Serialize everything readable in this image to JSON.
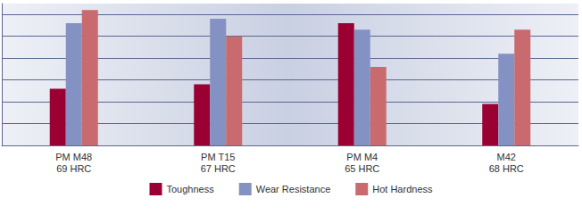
{
  "chart_data": {
    "type": "bar",
    "categories": [
      "PM M48\n69 HRC",
      "PM T15\n67 HRC",
      "PM M4\n65 HRC",
      "M42\n68 HRC"
    ],
    "series": [
      {
        "name": "Toughness",
        "color": "#9b0033",
        "values": [
          2.6,
          2.8,
          5.6,
          1.9
        ]
      },
      {
        "name": "Wear Resistance",
        "color": "#8491c3",
        "values": [
          5.6,
          5.8,
          5.3,
          4.2
        ]
      },
      {
        "name": "Hot Hardness",
        "color": "#c96b6e",
        "values": [
          6.2,
          5.0,
          3.6,
          5.3
        ]
      }
    ],
    "ylim": [
      0,
      6.5
    ],
    "yticks": [
      0,
      1,
      2,
      3,
      4,
      5,
      6
    ],
    "grid": true,
    "legend": "bottom",
    "tick_labels": "x"
  }
}
